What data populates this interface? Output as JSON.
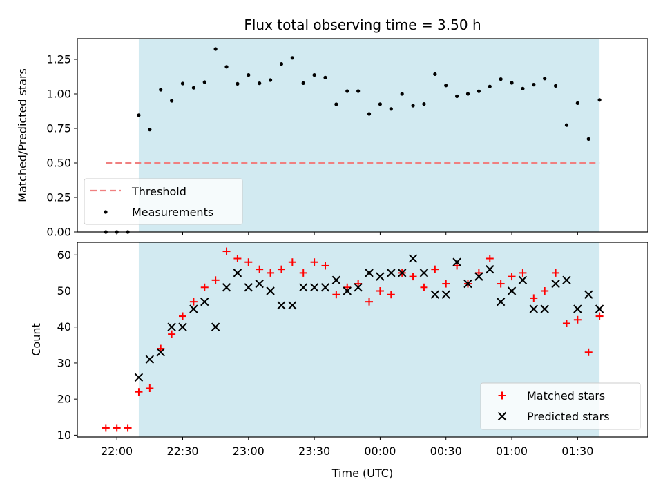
{
  "chart_data": {
    "type": "scatter",
    "title": "Flux total observing time = 3.50 h",
    "xlabel": "Time (UTC)",
    "x_tick_labels": [
      "22:00",
      "22:30",
      "23:00",
      "23:30",
      "00:00",
      "00:30",
      "01:00",
      "01:30"
    ],
    "x_tick_times": [
      "22:00",
      "22:30",
      "23:00",
      "23:30",
      "00:00",
      "00:30",
      "01:00",
      "01:30"
    ],
    "xlim": [
      "21:42",
      "02:02"
    ],
    "observing_window": [
      "22:10",
      "01:40"
    ],
    "observing_window_color": "#add8e6",
    "times": [
      "21:55",
      "22:00",
      "22:05",
      "22:10",
      "22:15",
      "22:20",
      "22:25",
      "22:30",
      "22:35",
      "22:40",
      "22:45",
      "22:50",
      "22:55",
      "23:00",
      "23:05",
      "23:10",
      "23:15",
      "23:20",
      "23:25",
      "23:30",
      "23:35",
      "23:40",
      "23:45",
      "23:50",
      "23:55",
      "00:00",
      "00:05",
      "00:10",
      "00:15",
      "00:20",
      "00:25",
      "00:30",
      "00:35",
      "00:40",
      "00:45",
      "00:50",
      "00:55",
      "01:00",
      "01:05",
      "01:10",
      "01:15",
      "01:20",
      "01:25",
      "01:30",
      "01:35",
      "01:40"
    ],
    "top_panel": {
      "ylabel": "Matched/Predicted stars",
      "ylim": [
        0,
        1.4
      ],
      "y_ticks": [
        0.0,
        0.25,
        0.5,
        0.75,
        1.0,
        1.25
      ],
      "y_tick_labels": [
        "0.00",
        "0.25",
        "0.50",
        "0.75",
        "1.00",
        "1.25"
      ],
      "threshold": {
        "name": "Threshold",
        "value": 0.5,
        "x_range": [
          "21:55",
          "01:40"
        ],
        "color": "#f08080"
      },
      "measurements": {
        "name": "Measurements",
        "color": "#000000",
        "values": [
          0,
          0,
          0,
          0.846,
          0.742,
          1.03,
          0.95,
          1.075,
          1.044,
          1.085,
          1.325,
          1.196,
          1.073,
          1.137,
          1.077,
          1.1,
          1.217,
          1.261,
          1.078,
          1.137,
          1.118,
          0.925,
          1.02,
          1.02,
          0.855,
          0.926,
          0.891,
          1.0,
          0.915,
          0.927,
          1.143,
          1.061,
          0.983,
          1.0,
          1.019,
          1.054,
          1.107,
          1.08,
          1.038,
          1.067,
          1.111,
          1.058,
          0.774,
          0.933,
          0.673,
          0.956
        ]
      },
      "legend_position": "lower-left"
    },
    "bottom_panel": {
      "ylabel": "Count",
      "ylim": [
        9.5,
        63.5
      ],
      "y_ticks": [
        10,
        20,
        30,
        40,
        50,
        60
      ],
      "y_tick_labels": [
        "10",
        "20",
        "30",
        "40",
        "50",
        "60"
      ],
      "series": [
        {
          "name": "Matched stars",
          "color": "#ff0000",
          "marker": "plus",
          "values": [
            12,
            12,
            12,
            22,
            23,
            34,
            38,
            43,
            47,
            51,
            53,
            61,
            59,
            58,
            56,
            55,
            56,
            58,
            55,
            58,
            57,
            49,
            51,
            52,
            47,
            50,
            49,
            55,
            54,
            51,
            56,
            52,
            57,
            52,
            55,
            59,
            52,
            54,
            55,
            48,
            50,
            55,
            41,
            42,
            33,
            43
          ]
        },
        {
          "name": "Predicted stars",
          "color": "#000000",
          "marker": "x",
          "values": [
            null,
            null,
            null,
            26,
            31,
            33,
            40,
            40,
            45,
            47,
            40,
            51,
            55,
            51,
            52,
            50,
            46,
            46,
            51,
            51,
            51,
            53,
            50,
            51,
            55,
            54,
            55,
            55,
            59,
            55,
            49,
            49,
            58,
            52,
            54,
            56,
            47,
            50,
            53,
            45,
            45,
            52,
            53,
            45,
            49,
            45
          ]
        }
      ],
      "legend_position": "lower-right"
    }
  }
}
